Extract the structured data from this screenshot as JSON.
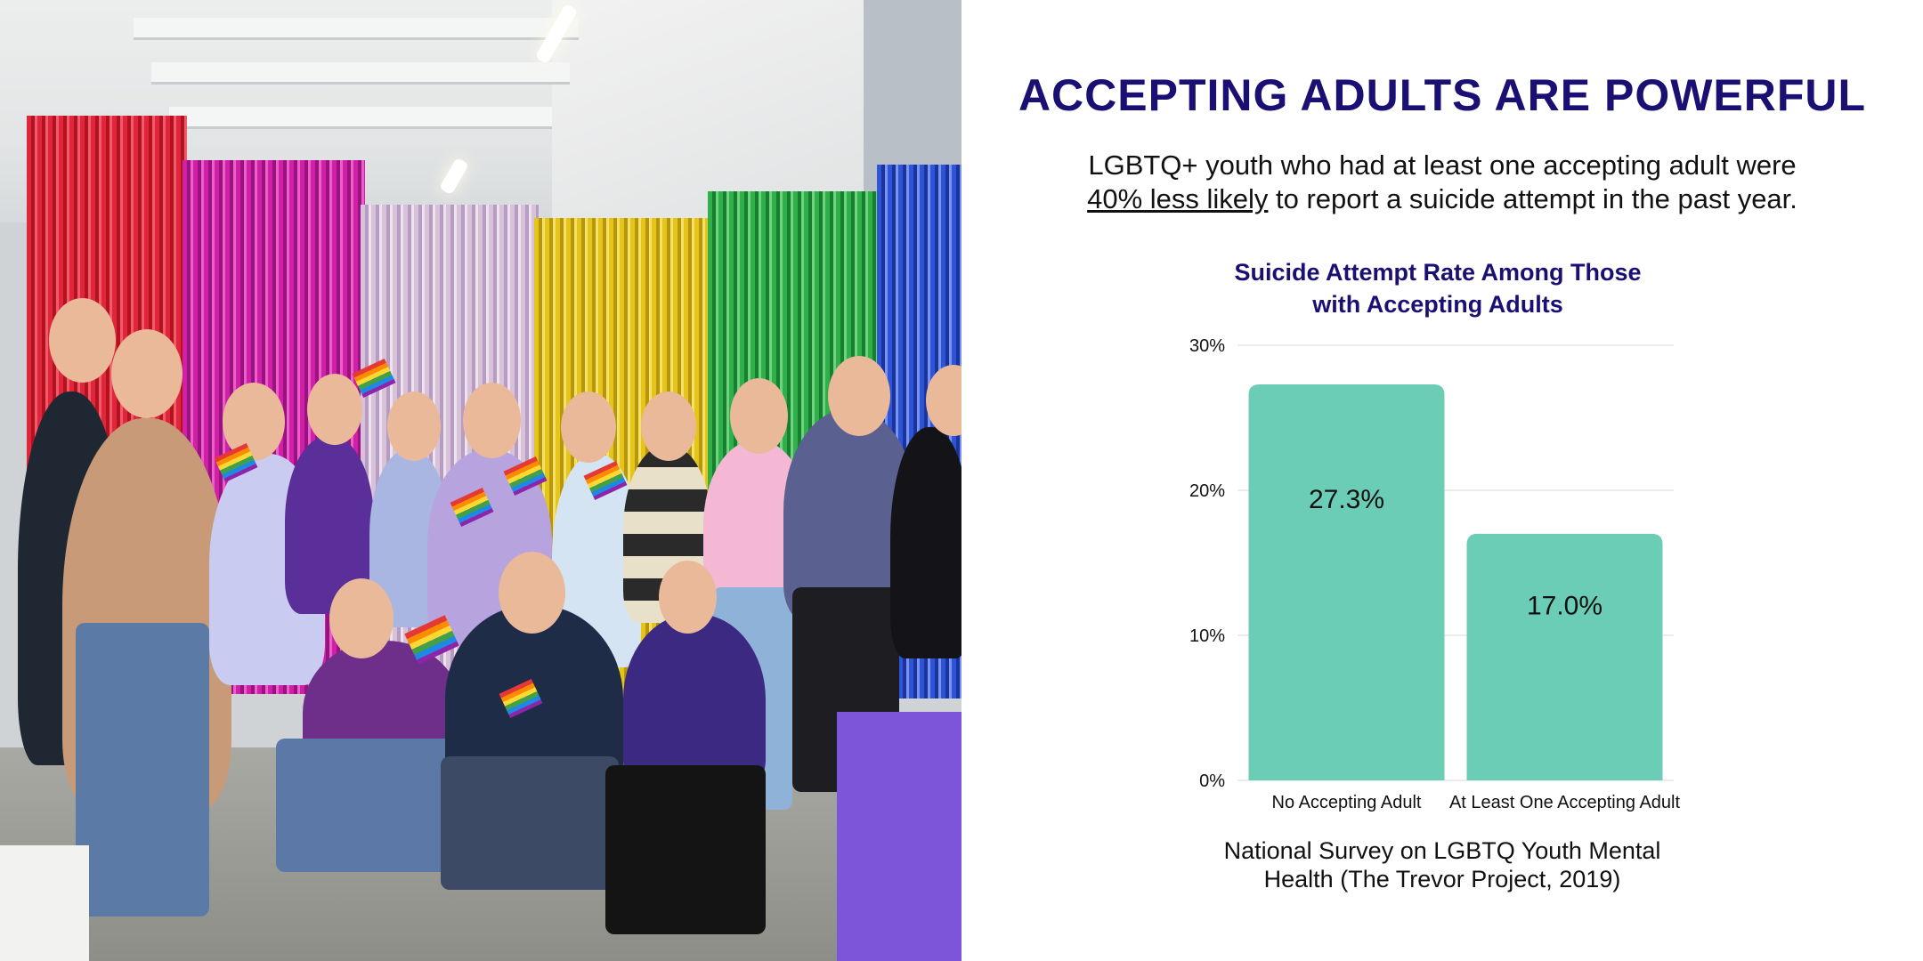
{
  "heading": "ACCEPTING ADULTS ARE POWERFUL",
  "subtitle": {
    "line1": "LGBTQ+ youth who had at least one accepting adult were",
    "underlined": "40% less likely",
    "rest": " to report a suicide attempt in the past year."
  },
  "source": "National Survey on LGBTQ Youth Mental Health (The Trevor Project, 2019)",
  "colors": {
    "heading": "#1a0f73",
    "bar": "#6ccdb7",
    "grid": "#e6e6e6"
  },
  "chart_data": {
    "type": "bar",
    "title": "Suicide Attempt Rate  Among Those with Accepting Adults",
    "title_lines": [
      "Suicide Attempt Rate  Among Those",
      "with Accepting Adults"
    ],
    "categories": [
      "No Accepting Adult",
      "At Least One Accepting Adult"
    ],
    "values": [
      27.3,
      17.0
    ],
    "data_labels": [
      "27.3%",
      "17.0%"
    ],
    "ylim": [
      0,
      30
    ],
    "yticks": [
      0,
      10,
      20,
      30
    ],
    "ytick_labels": [
      "0%",
      "10%",
      "20%",
      "30%"
    ],
    "grid": true,
    "xlabel": "",
    "ylabel": ""
  }
}
